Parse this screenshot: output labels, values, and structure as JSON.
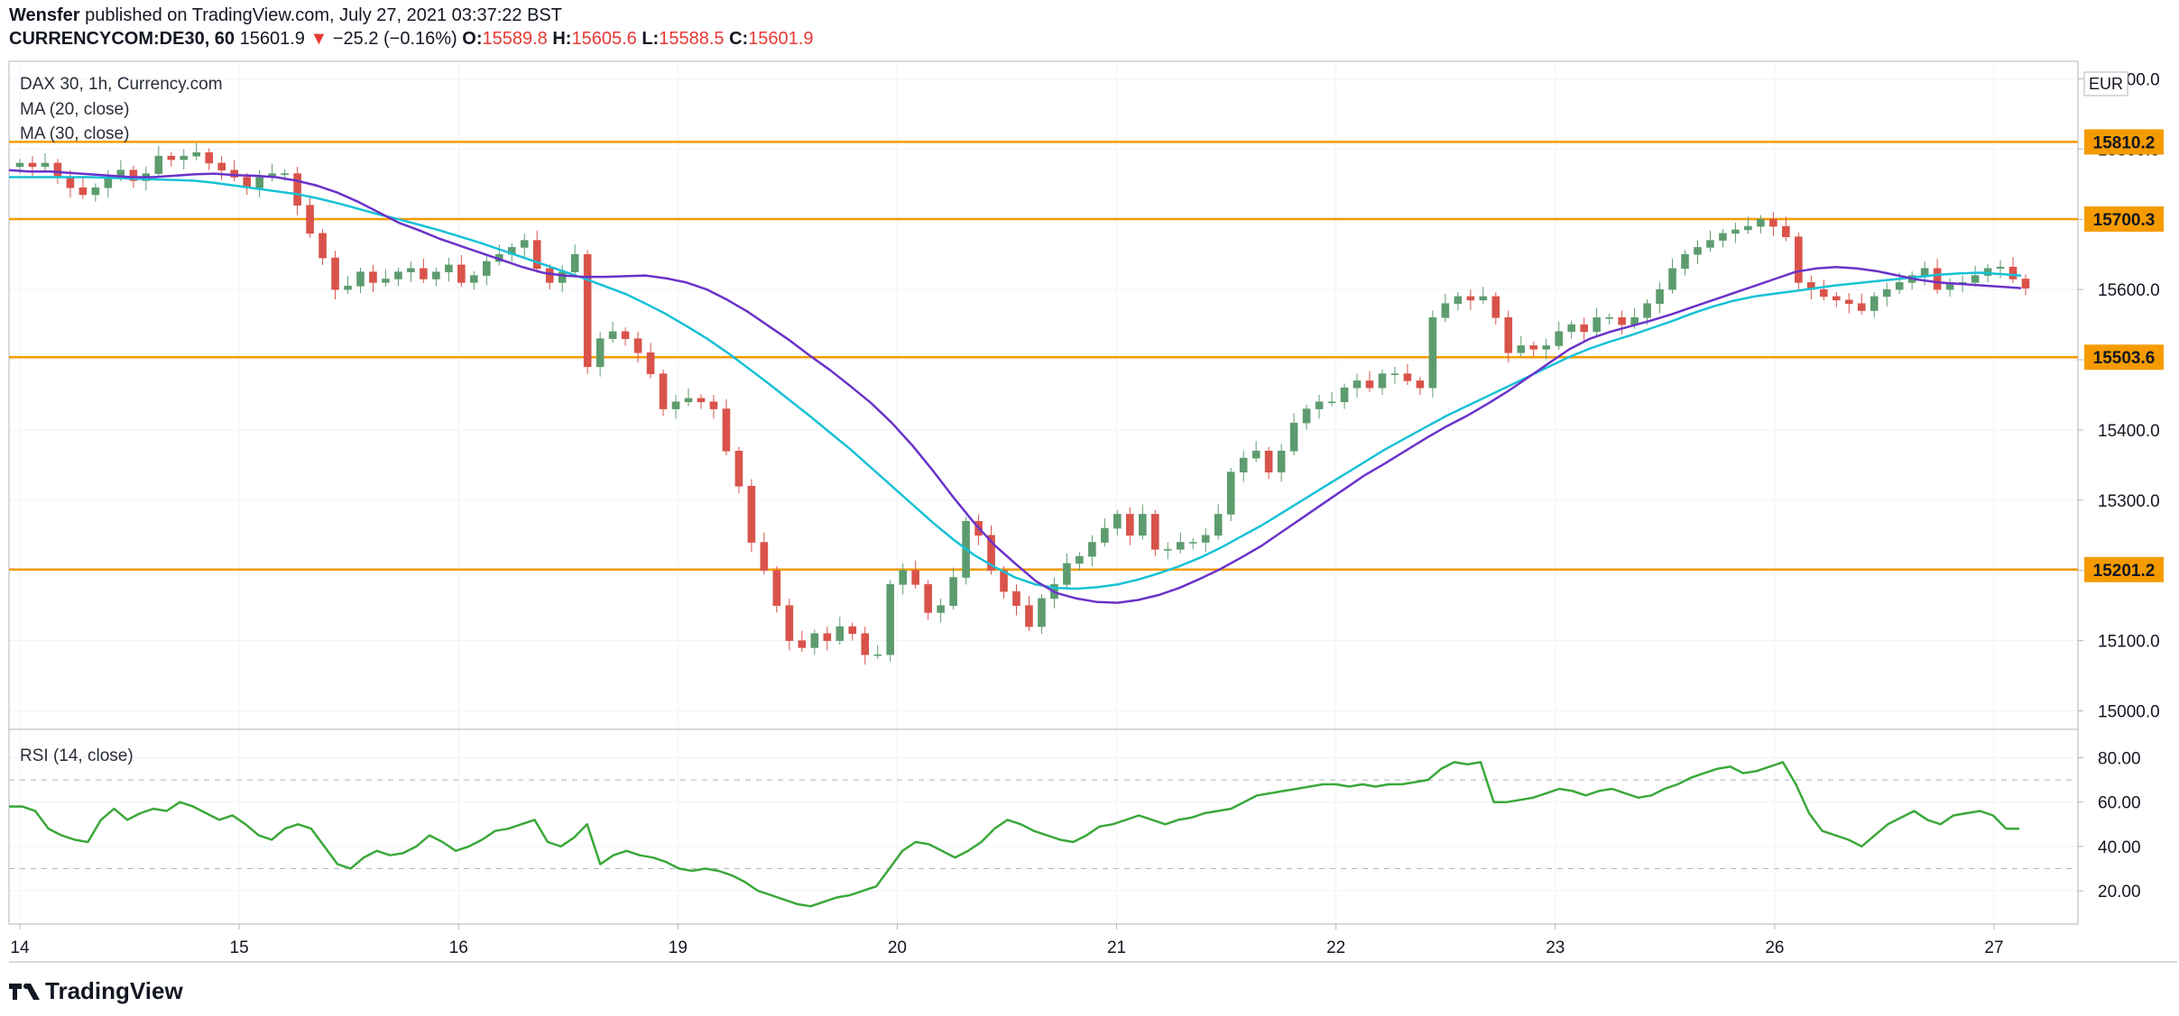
{
  "header": {
    "publisher": "Wensfer",
    "published_text": " published on TradingView.com, July 27, 2021 03:37:22 BST",
    "symbol": "CURRENCYCOM:DE30, 60",
    "last": "15601.9",
    "change_arrow": "▼",
    "change": "−25.2 (−0.16%)",
    "o_label": "O:",
    "o_value": "15589.8",
    "h_label": "H:",
    "h_value": "15605.6",
    "l_label": "L:",
    "l_value": "15588.5",
    "c_label": "C:",
    "c_value": "15601.9"
  },
  "legend": {
    "title": "DAX 30, 1h, Currency.com",
    "ma20": "MA (20, close)",
    "ma30": "MA (30, close)",
    "rsi": "RSI (14, close)"
  },
  "footer": {
    "brand": "TradingView"
  },
  "colors": {
    "up": "#5d9c6f",
    "down": "#d9534a",
    "ma20": "#6a32c9",
    "ma30": "#17c1d6",
    "level": "#f59b00",
    "rsi": "#3aa83a",
    "grid": "#f0f3fa",
    "axis_text": "#131722"
  },
  "chart_data": [
    {
      "type": "candlestick",
      "title": "DAX 30, 1h, Currency.com",
      "currency": "EUR",
      "ylim": [
        14975,
        15925
      ],
      "y_ticks": [
        "15000.0",
        "15100.0",
        "15200.0",
        "15300.0",
        "15400.0",
        "15500.0",
        "15600.0",
        "15700.0",
        "15800.0",
        "15900.0"
      ],
      "x_labels": [
        "14",
        "15",
        "16",
        "19",
        "20",
        "21",
        "22",
        "23",
        "26",
        "27"
      ],
      "horizontal_levels": [
        15810.2,
        15700.3,
        15503.6,
        15201.2
      ],
      "level_labels": [
        "15810.2",
        "15700.3",
        "15503.6",
        "15201.2"
      ],
      "close": [
        15780,
        15775,
        15780,
        15760,
        15745,
        15735,
        15745,
        15760,
        15770,
        15755,
        15765,
        15790,
        15785,
        15790,
        15795,
        15780,
        15770,
        15760,
        15745,
        15760,
        15765,
        15765,
        15720,
        15680,
        15645,
        15600,
        15605,
        15625,
        15610,
        15615,
        15625,
        15630,
        15615,
        15625,
        15635,
        15610,
        15620,
        15640,
        15650,
        15660,
        15670,
        15630,
        15610,
        15625,
        15650,
        15490,
        15530,
        15540,
        15530,
        15510,
        15480,
        15430,
        15440,
        15445,
        15440,
        15430,
        15370,
        15320,
        15240,
        15200,
        15150,
        15100,
        15090,
        15110,
        15100,
        15120,
        15110,
        15080,
        15080,
        15180,
        15200,
        15180,
        15140,
        15150,
        15190,
        15270,
        15250,
        15200,
        15170,
        15150,
        15120,
        15160,
        15180,
        15210,
        15220,
        15240,
        15260,
        15280,
        15250,
        15280,
        15230,
        15230,
        15240,
        15240,
        15250,
        15280,
        15340,
        15360,
        15370,
        15340,
        15370,
        15410,
        15430,
        15440,
        15440,
        15460,
        15470,
        15460,
        15480,
        15480,
        15470,
        15460,
        15560,
        15580,
        15590,
        15585,
        15590,
        15560,
        15510,
        15520,
        15515,
        15520,
        15540,
        15550,
        15540,
        15560,
        15560,
        15550,
        15560,
        15580,
        15600,
        15630,
        15650,
        15660,
        15670,
        15680,
        15685,
        15690,
        15700,
        15690,
        15675,
        15610,
        15600,
        15590,
        15585,
        15580,
        15570,
        15590,
        15600,
        15610,
        15620,
        15630,
        15600,
        15610,
        15610,
        15620,
        15630,
        15632,
        15615,
        15601.9
      ],
      "ma20": [
        15770,
        15768,
        15768,
        15766,
        15764,
        15762,
        15760,
        15760,
        15762,
        15764,
        15765,
        15763,
        15762,
        15760,
        15755,
        15748,
        15738,
        15725,
        15710,
        15695,
        15684,
        15672,
        15662,
        15652,
        15642,
        15632,
        15624,
        15620,
        15618,
        15618,
        15619,
        15620,
        15616,
        15610,
        15600,
        15585,
        15568,
        15548,
        15528,
        15506,
        15485,
        15462,
        15438,
        15410,
        15378,
        15342,
        15304,
        15268,
        15236,
        15210,
        15185,
        15168,
        15160,
        15155,
        15154,
        15158,
        15165,
        15175,
        15188,
        15202,
        15218,
        15235,
        15255,
        15275,
        15295,
        15315,
        15335,
        15352,
        15370,
        15388,
        15405,
        15420,
        15437,
        15455,
        15475,
        15495,
        15515,
        15530,
        15540,
        15548,
        15556,
        15565,
        15575,
        15585,
        15595,
        15605,
        15615,
        15625,
        15630,
        15632,
        15630,
        15626,
        15620,
        15614,
        15610,
        15608,
        15606,
        15604,
        15602
      ],
      "ma30": [
        15760,
        15760,
        15760,
        15760,
        15760,
        15759,
        15758,
        15757,
        15756,
        15755,
        15752,
        15748,
        15744,
        15740,
        15736,
        15730,
        15723,
        15715,
        15707,
        15700,
        15692,
        15684,
        15675,
        15666,
        15656,
        15646,
        15636,
        15626,
        15616,
        15605,
        15594,
        15580,
        15565,
        15548,
        15530,
        15510,
        15488,
        15466,
        15443,
        15420,
        15396,
        15372,
        15346,
        15320,
        15294,
        15268,
        15244,
        15222,
        15205,
        15190,
        15180,
        15175,
        15174,
        15176,
        15180,
        15187,
        15196,
        15206,
        15218,
        15232,
        15248,
        15264,
        15282,
        15300,
        15318,
        15336,
        15354,
        15372,
        15388,
        15404,
        15420,
        15434,
        15448,
        15462,
        15476,
        15490,
        15504,
        15516,
        15526,
        15535,
        15545,
        15555,
        15566,
        15576,
        15584,
        15590,
        15594,
        15598,
        15602,
        15606,
        15609,
        15612,
        15615,
        15618,
        15621,
        15623,
        15624,
        15622,
        15620
      ]
    },
    {
      "type": "line",
      "title": "RSI (14, close)",
      "ylim": [
        5,
        92
      ],
      "y_ticks": [
        "20.00",
        "40.00",
        "60.00",
        "80.00"
      ],
      "bands": [
        30,
        70
      ],
      "values": [
        58,
        58,
        56,
        48,
        45,
        43,
        42,
        52,
        57,
        52,
        55,
        57,
        56,
        60,
        58,
        55,
        52,
        54,
        50,
        45,
        43,
        48,
        50,
        48,
        40,
        32,
        30,
        35,
        38,
        36,
        37,
        40,
        45,
        42,
        38,
        40,
        43,
        47,
        48,
        50,
        52,
        42,
        40,
        44,
        50,
        32,
        36,
        38,
        36,
        35,
        33,
        30,
        29,
        30,
        29,
        27,
        24,
        20,
        18,
        16,
        14,
        13,
        15,
        17,
        18,
        20,
        22,
        30,
        38,
        42,
        41,
        38,
        35,
        38,
        42,
        48,
        52,
        50,
        47,
        45,
        43,
        42,
        45,
        49,
        50,
        52,
        54,
        52,
        50,
        52,
        53,
        55,
        56,
        57,
        60,
        63,
        64,
        65,
        66,
        67,
        68,
        68,
        67,
        68,
        67,
        68,
        68,
        69,
        70,
        75,
        78,
        77,
        78,
        60,
        60,
        61,
        62,
        64,
        66,
        65,
        63,
        65,
        66,
        64,
        62,
        63,
        66,
        68,
        71,
        73,
        75,
        76,
        73,
        74,
        76,
        78,
        68,
        55,
        47,
        45,
        43,
        40,
        45,
        50,
        53,
        56,
        52,
        50,
        54,
        55,
        56,
        54,
        48,
        48
      ]
    }
  ]
}
